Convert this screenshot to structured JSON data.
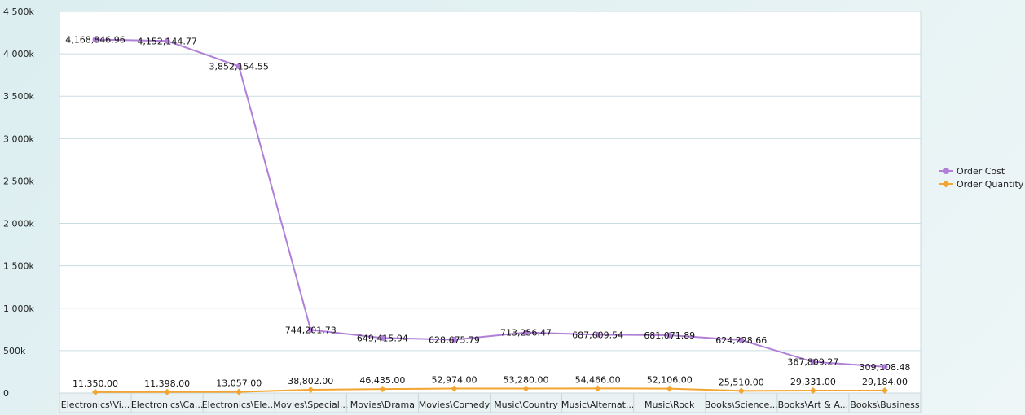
{
  "chart_data": {
    "type": "line",
    "categories": [
      "Electronics\\Vi...",
      "Electronics\\Ca...",
      "Electronics\\Ele...",
      "Movies\\Special...",
      "Movies\\Drama",
      "Movies\\Comedy",
      "Music\\Country",
      "Music\\Alternat...",
      "Music\\Rock",
      "Books\\Science...",
      "Books\\Art & A...",
      "Books\\Business"
    ],
    "series": [
      {
        "name": "Order Cost",
        "color": "#b07fd8",
        "marker": "circle",
        "values": [
          4168846.96,
          4152144.77,
          3852154.55,
          744201.73,
          649415.94,
          628675.79,
          713256.47,
          687609.54,
          681071.89,
          624228.66,
          367809.27,
          309108.48
        ],
        "labels": [
          "4,168,846.96",
          "4,152,144.77",
          "3,852,154.55",
          "744,201.73",
          "649,415.94",
          "628,675.79",
          "713,256.47",
          "687,609.54",
          "681,071.89",
          "624,228.66",
          "367,809.27",
          "309,108.48"
        ]
      },
      {
        "name": "Order Quantity",
        "color": "#f2a531",
        "marker": "diamond",
        "values": [
          11350,
          11398,
          13057,
          38802,
          46435,
          52974,
          53280,
          54466,
          52106,
          25510,
          29331,
          29184
        ],
        "labels": [
          "11,350.00",
          "11,398.00",
          "13,057.00",
          "38,802.00",
          "46,435.00",
          "52,974.00",
          "53,280.00",
          "54,466.00",
          "52,106.00",
          "25,510.00",
          "29,331.00",
          "29,184.00"
        ]
      }
    ],
    "y_ticks": [
      0,
      500000,
      1000000,
      1500000,
      2000000,
      2500000,
      3000000,
      3500000,
      4000000,
      4500000
    ],
    "y_tick_labels": [
      "0",
      "500k",
      "1 000k",
      "1 500k",
      "2 000k",
      "2 500k",
      "3 000k",
      "3 500k",
      "4 000k",
      "4 500k"
    ],
    "ylim": [
      0,
      4500000
    ],
    "grid": true,
    "legend_position": "right"
  }
}
